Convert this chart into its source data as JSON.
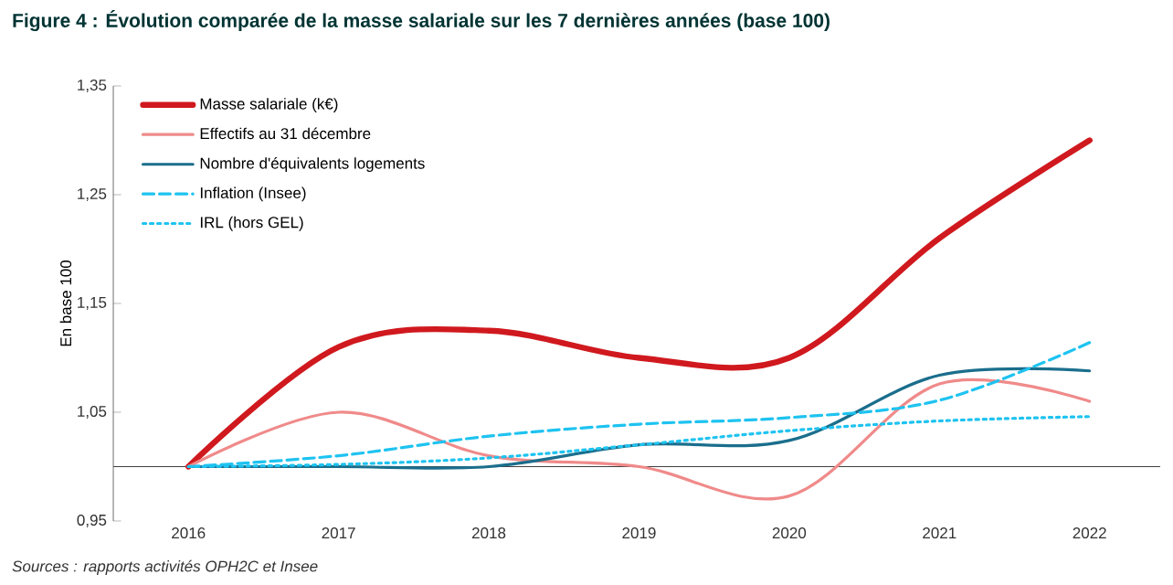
{
  "chart_data": {
    "type": "line",
    "title": "Figure 4 : Évolution comparée de la masse salariale sur les 7 dernières années (base 100)",
    "ylabel": "En base 100",
    "categories": [
      "2016",
      "2017",
      "2018",
      "2019",
      "2020",
      "2021",
      "2022"
    ],
    "series": [
      {
        "name": "Masse salariale (k€)",
        "color": "#d0191e",
        "values": [
          1.0,
          1.11,
          1.125,
          1.1,
          1.1,
          1.21,
          1.3
        ],
        "line_style": "solid"
      },
      {
        "name": "Effectifs au 31 décembre",
        "color": "#f08a8a",
        "values": [
          1.0,
          1.05,
          1.01,
          1.0,
          0.973,
          1.076,
          1.06
        ],
        "line_style": "solid"
      },
      {
        "name": "Nombre d'équivalents logements",
        "color": "#1a6e8c",
        "values": [
          1.0,
          1.0,
          1.0,
          1.02,
          1.024,
          1.084,
          1.088
        ],
        "line_style": "solid"
      },
      {
        "name": "Inflation (Insee)",
        "color": "#1ec3f0",
        "values": [
          1.0,
          1.01,
          1.028,
          1.039,
          1.045,
          1.061,
          1.114
        ],
        "line_style": "dashed"
      },
      {
        "name": "IRL (hors GEL)",
        "color": "#1ec3f0",
        "values": [
          1.0,
          1.002,
          1.008,
          1.02,
          1.033,
          1.042,
          1.046
        ],
        "line_style": "dotted"
      }
    ],
    "ylim": [
      0.95,
      1.35
    ],
    "yticks": [
      {
        "value": 0.95,
        "label": "0,95"
      },
      {
        "value": 1.05,
        "label": "1,05"
      },
      {
        "value": 1.15,
        "label": "1,15"
      },
      {
        "value": 1.25,
        "label": "1,25"
      },
      {
        "value": 1.35,
        "label": "1,35"
      }
    ],
    "ref_lines": [
      {
        "axis": "y",
        "value": 1.0,
        "color": "#404040"
      }
    ],
    "legend": "top left",
    "grid": false,
    "marker": "none",
    "annotations": [
      "Sources : rapports activités OPH2C et Insee"
    ]
  }
}
